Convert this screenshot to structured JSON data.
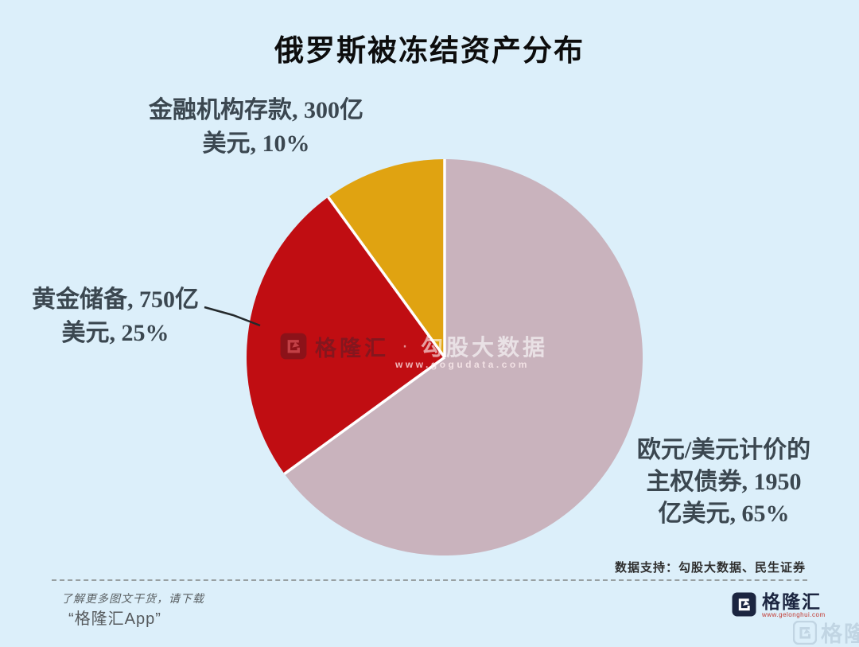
{
  "title": "俄罗斯被冻结资产分布",
  "chart_data": {
    "type": "pie",
    "title": "俄罗斯被冻结资产分布",
    "unit": "亿美元",
    "start_angle_deg": 0,
    "direction": "clockwise",
    "separator_color": "#FFFFFF",
    "background_color": "#DCEFFA",
    "slices": [
      {
        "id": "sovereign-bonds",
        "label": "欧元/美元计价的主权债券",
        "value": 1950,
        "percent": 65,
        "color": "#C9B3BD"
      },
      {
        "id": "gold-reserves",
        "label": "黄金储备",
        "value": 750,
        "percent": 25,
        "color": "#C00D12"
      },
      {
        "id": "deposits",
        "label": "金融机构存款",
        "value": 300,
        "percent": 10,
        "color": "#E0A311"
      }
    ]
  },
  "callouts": {
    "deposits": {
      "line1": "金融机构存款, 300亿",
      "line2": "美元, 10%"
    },
    "gold": {
      "line1": "黄金储备, 750亿",
      "line2": "美元, 25%"
    },
    "bonds": {
      "line1": "欧元/美元计价的",
      "line2": "主权债券, 1950",
      "line3": "亿美元, 65%"
    }
  },
  "center_watermark": {
    "g": "G",
    "brand": "格隆汇",
    "dot": "·",
    "partner": "勾股大数据",
    "url": "www.gogudata.com"
  },
  "footer": {
    "data_support": "数据支持：勾股大数据、民生证券",
    "promo_line1": "了解更多图文干货，请下载",
    "promo_line2": "“格隆汇App”",
    "brand": "格隆汇",
    "brand_url": "www.gelonghui.com",
    "corner_watermark_brand": "格隆汇"
  }
}
